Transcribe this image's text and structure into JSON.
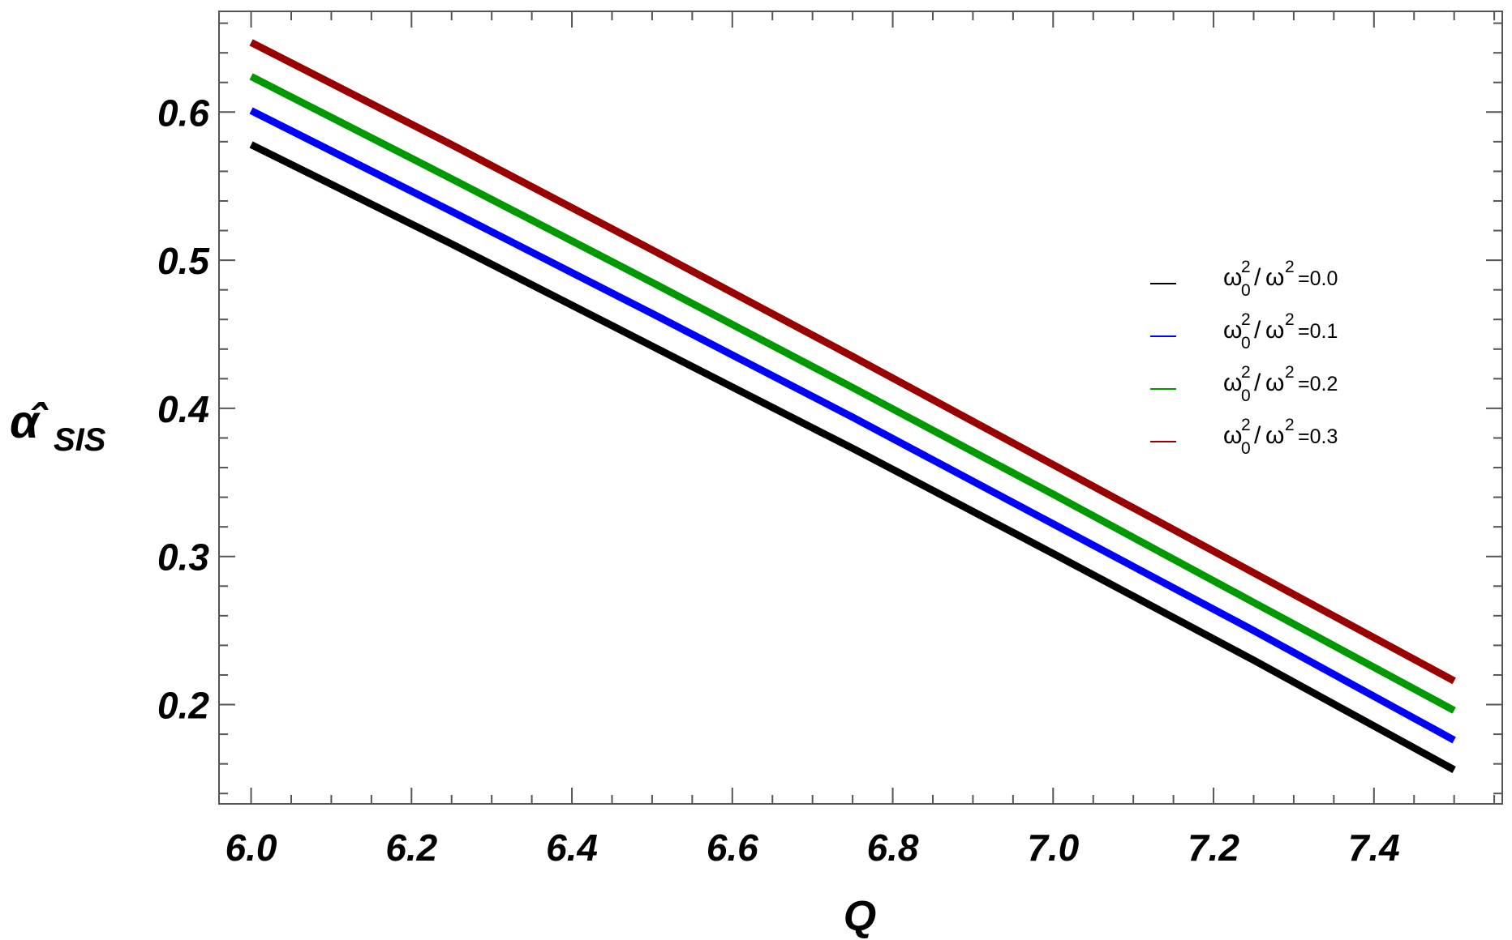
{
  "chart_data": {
    "type": "line",
    "xlabel": "Q",
    "ylabel": "α̂",
    "ylabel_subscript": "SIS",
    "xlim": [
      5.96,
      7.56
    ],
    "ylim": [
      0.133,
      0.668
    ],
    "x_ticks": [
      6.0,
      6.2,
      6.4,
      6.6,
      6.8,
      7.0,
      7.2,
      7.4
    ],
    "x_tick_labels": [
      "6.0",
      "6.2",
      "6.4",
      "6.6",
      "6.8",
      "7.0",
      "7.2",
      "7.4"
    ],
    "y_ticks": [
      0.2,
      0.3,
      0.4,
      0.5,
      0.6
    ],
    "y_tick_labels": [
      "0.2",
      "0.3",
      "0.4",
      "0.5",
      "0.6"
    ],
    "grid": false,
    "legend_position": "right",
    "x": [
      6.0,
      6.25,
      6.5,
      6.75,
      7.0,
      7.25,
      7.5
    ],
    "series": [
      {
        "legend": {
          "sym": "ω",
          "sub": "0",
          "sup": "2",
          "den": "ω",
          "den_sup": "2",
          "value": "=0.0"
        },
        "color": "#000000",
        "values": [
          0.578,
          0.511,
          0.442,
          0.373,
          0.302,
          0.23,
          0.156
        ]
      },
      {
        "legend": {
          "sym": "ω",
          "sub": "0",
          "sup": "2",
          "den": "ω",
          "den_sup": "2",
          "value": "=0.1"
        },
        "color": "#0000ff",
        "values": [
          0.601,
          0.533,
          0.464,
          0.394,
          0.322,
          0.25,
          0.176
        ]
      },
      {
        "legend": {
          "sym": "ω",
          "sub": "0",
          "sup": "2",
          "den": "ω",
          "den_sup": "2",
          "value": "=0.2"
        },
        "color": "#009900",
        "values": [
          0.624,
          0.555,
          0.485,
          0.414,
          0.342,
          0.269,
          0.196
        ]
      },
      {
        "legend": {
          "sym": "ω",
          "sub": "0",
          "sup": "2",
          "den": "ω",
          "den_sup": "2",
          "value": "=0.3"
        },
        "color": "#990000",
        "values": [
          0.647,
          0.578,
          0.507,
          0.435,
          0.362,
          0.289,
          0.216
        ]
      }
    ]
  }
}
